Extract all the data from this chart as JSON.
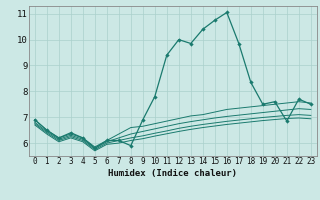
{
  "xlabel": "Humidex (Indice chaleur)",
  "x_values": [
    0,
    1,
    2,
    3,
    4,
    5,
    6,
    7,
    8,
    9,
    10,
    11,
    12,
    13,
    14,
    15,
    16,
    17,
    18,
    19,
    20,
    21,
    22,
    23
  ],
  "line1": [
    6.9,
    6.5,
    6.2,
    6.4,
    6.2,
    5.8,
    6.1,
    6.1,
    5.9,
    6.9,
    7.8,
    9.4,
    10.0,
    9.85,
    10.4,
    10.75,
    11.05,
    9.85,
    8.35,
    7.5,
    7.6,
    6.85,
    7.7,
    7.5
  ],
  "line2": [
    6.9,
    6.5,
    6.2,
    6.35,
    6.2,
    5.85,
    6.1,
    6.35,
    6.6,
    6.65,
    6.75,
    6.85,
    6.95,
    7.05,
    7.1,
    7.2,
    7.3,
    7.35,
    7.4,
    7.45,
    7.5,
    7.55,
    7.6,
    7.55
  ],
  "line3": [
    6.8,
    6.45,
    6.15,
    6.3,
    6.15,
    5.8,
    6.05,
    6.2,
    6.35,
    6.45,
    6.55,
    6.65,
    6.75,
    6.83,
    6.9,
    6.97,
    7.03,
    7.08,
    7.13,
    7.18,
    7.23,
    7.28,
    7.33,
    7.3
  ],
  "line4": [
    6.75,
    6.4,
    6.1,
    6.25,
    6.1,
    5.75,
    6.0,
    6.1,
    6.2,
    6.28,
    6.38,
    6.47,
    6.57,
    6.65,
    6.72,
    6.78,
    6.84,
    6.89,
    6.94,
    6.99,
    7.03,
    7.07,
    7.1,
    7.07
  ],
  "line5": [
    6.7,
    6.35,
    6.05,
    6.2,
    6.05,
    5.7,
    5.95,
    6.0,
    6.1,
    6.17,
    6.27,
    6.36,
    6.45,
    6.53,
    6.6,
    6.66,
    6.72,
    6.77,
    6.82,
    6.87,
    6.91,
    6.95,
    6.97,
    6.94
  ],
  "line_color": "#1a7a6e",
  "bg_color": "#cce8e5",
  "grid_color": "#aad0cc",
  "ylim": [
    5.5,
    11.3
  ],
  "xlim": [
    -0.5,
    23.5
  ],
  "yticks": [
    6,
    7,
    8,
    9,
    10,
    11
  ],
  "xticks": [
    0,
    1,
    2,
    3,
    4,
    5,
    6,
    7,
    8,
    9,
    10,
    11,
    12,
    13,
    14,
    15,
    16,
    17,
    18,
    19,
    20,
    21,
    22,
    23
  ]
}
